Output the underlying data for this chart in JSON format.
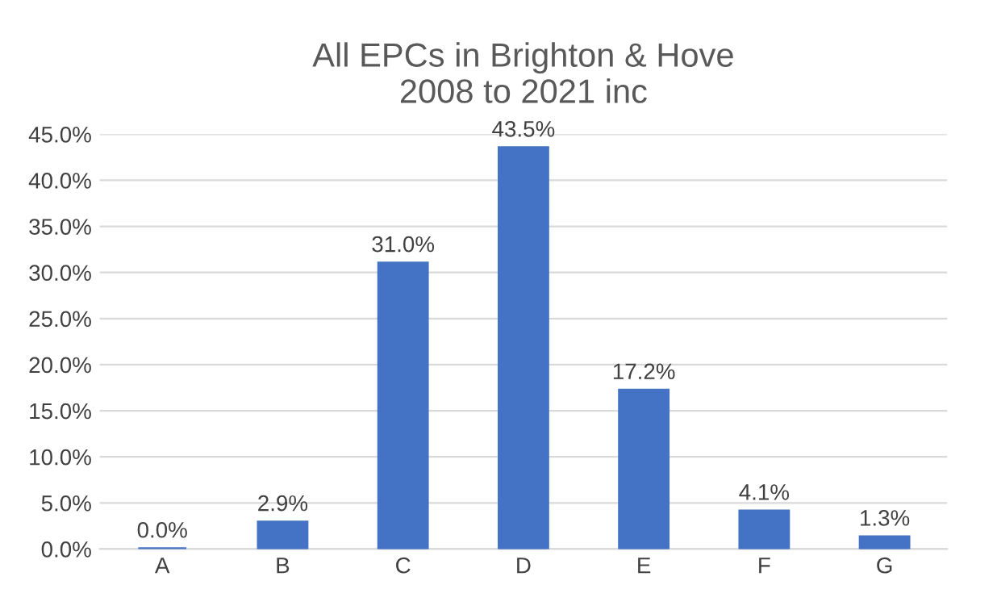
{
  "chart_data": {
    "type": "bar",
    "title": "All EPCs in Brighton & Hove\n2008 to 2021 inc",
    "categories": [
      "A",
      "B",
      "C",
      "D",
      "E",
      "F",
      "G"
    ],
    "values": [
      0.0,
      2.9,
      31.0,
      43.5,
      17.2,
      4.1,
      1.3
    ],
    "value_labels": [
      "0.0%",
      "2.9%",
      "31.0%",
      "43.5%",
      "17.2%",
      "4.1%",
      "1.3%"
    ],
    "color": "#4472c4",
    "ylim": [
      0,
      45
    ],
    "yticks": [
      {
        "value": 0,
        "label": "0.0%"
      },
      {
        "value": 5,
        "label": "5.0%"
      },
      {
        "value": 10,
        "label": "10.0%"
      },
      {
        "value": 15,
        "label": "15.0%"
      },
      {
        "value": 20,
        "label": "20.0%"
      },
      {
        "value": 25,
        "label": "25.0%"
      },
      {
        "value": 30,
        "label": "30.0%"
      },
      {
        "value": 35,
        "label": "35.0%"
      },
      {
        "value": 40,
        "label": "40.0%"
      },
      {
        "value": 45,
        "label": "45.0%"
      }
    ],
    "grid": "y"
  }
}
